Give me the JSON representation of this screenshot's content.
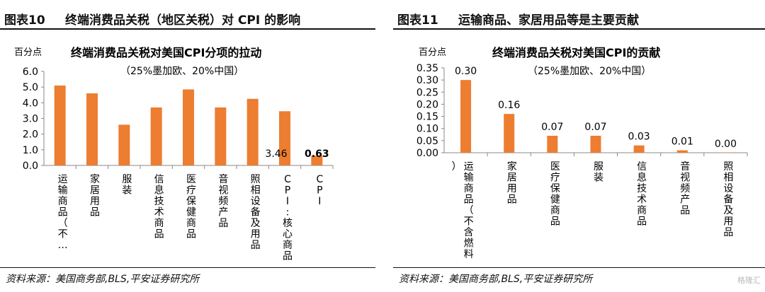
{
  "figures": [
    {
      "label": "图表10",
      "title": "终端消费品关税（地区关税）对 CPI 的影响",
      "source": "资料来源：美国商务部,BLS,平安证券研究所"
    },
    {
      "label": "图表11",
      "title": "运输商品、家居用品等是主要贡献",
      "source": "资料来源：美国商务部,BLS,平安证券研究所"
    }
  ],
  "watermark": "格隆汇",
  "chart_data": [
    {
      "type": "bar",
      "title": "终端消费品关税对美国CPI分项的拉动",
      "subtitle": "（25%墨加欧、20%中国）",
      "ylabel": "百分点",
      "ylim": [
        0,
        6
      ],
      "yticks": [
        "0.0",
        "1.0",
        "2.0",
        "3.0",
        "4.0",
        "5.0",
        "6.0"
      ],
      "categories": [
        "运输商品（不…",
        "家居用品",
        "服装",
        "信息技术商品",
        "医疗保健商品",
        "音视频产品",
        "照相设备及用品",
        "CPI:核心商品",
        "CPI"
      ],
      "values": [
        5.1,
        4.6,
        2.6,
        3.7,
        4.85,
        3.7,
        4.25,
        3.46,
        0.63
      ],
      "data_labels": [
        "",
        "",
        "",
        "",
        "",
        "",
        "",
        "3.46",
        "0.63"
      ],
      "bar_color": "#ED7D31",
      "grid": false
    },
    {
      "type": "bar",
      "title": "终端消费品关税对美国CPI的贡献",
      "subtitle": "（25%墨加欧、20%中国）",
      "ylabel": "百分点",
      "ylim": [
        0,
        0.35
      ],
      "yticks": [
        "0.00",
        "0.05",
        "0.10",
        "0.15",
        "0.20",
        "0.25",
        "0.30",
        "0.35"
      ],
      "categories": [
        "运输商品（不含燃料）",
        "家居用品",
        "医疗保健商品",
        "服装",
        "信息技术商品",
        "音视频产品",
        "照相设备及用品"
      ],
      "values": [
        0.3,
        0.16,
        0.07,
        0.07,
        0.03,
        0.01,
        0.0
      ],
      "data_labels": [
        "0.30",
        "0.16",
        "0.07",
        "0.07",
        "0.03",
        "0.01",
        "0.00"
      ],
      "bar_color": "#ED7D31",
      "grid": false
    }
  ]
}
